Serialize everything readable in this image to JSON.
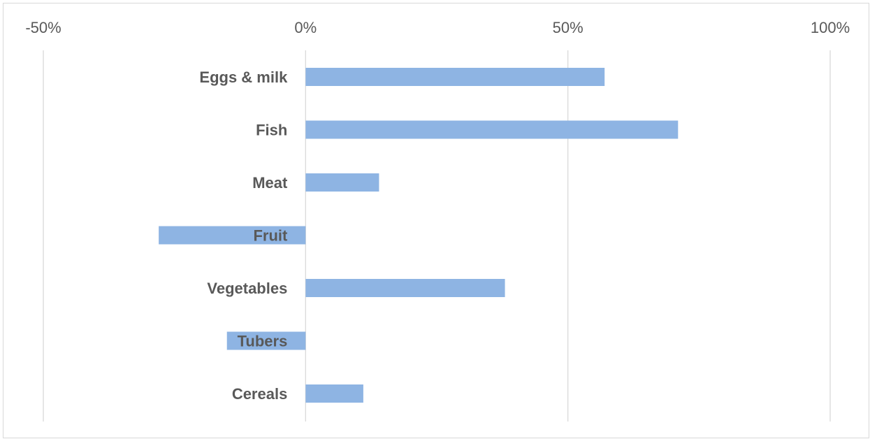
{
  "chart_data": {
    "type": "bar",
    "orientation": "horizontal",
    "categories": [
      "Eggs & milk",
      "Fish",
      "Meat",
      "Fruit",
      "Vegetables",
      "Tubers",
      "Cereals"
    ],
    "values": [
      57,
      71,
      14,
      -28,
      38,
      -15,
      11
    ],
    "unit": "%",
    "xlim": [
      -50,
      100
    ],
    "xticks": [
      "-50%",
      "0%",
      "50%",
      "100%"
    ],
    "xtick_values": [
      -50,
      0,
      50,
      100
    ],
    "xaxis_position": "top",
    "gridlines": true,
    "legend": "none",
    "title": "",
    "xlabel": "",
    "ylabel": "",
    "colors": {
      "bar": "#8eb4e3",
      "grid": "#d9d9d9",
      "text": "#595959"
    }
  }
}
